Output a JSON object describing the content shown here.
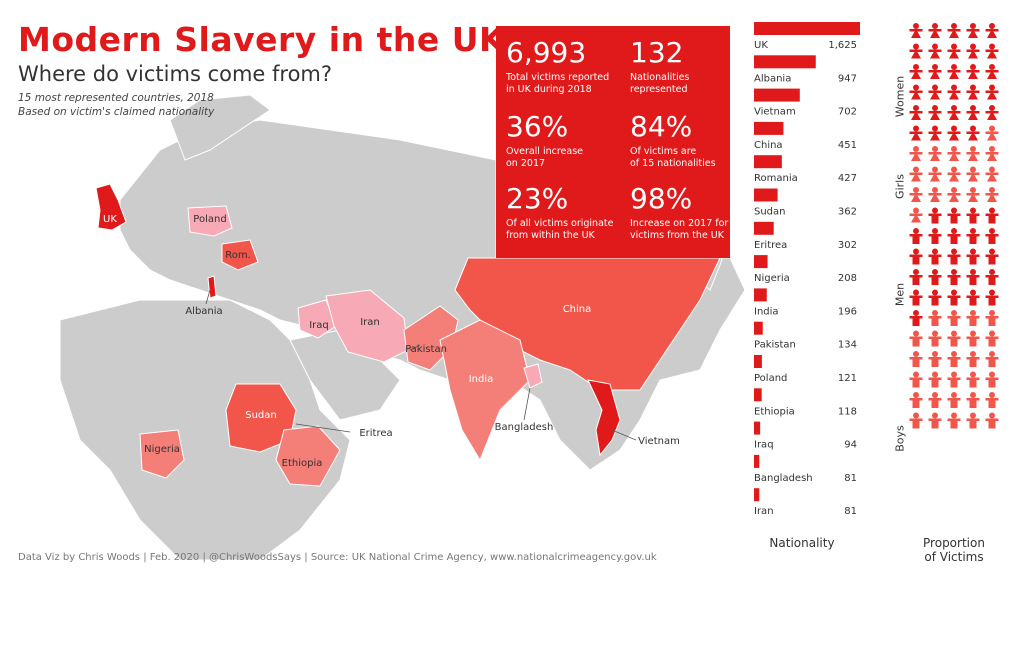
{
  "header": {
    "title": "Modern Slavery in the UK",
    "subtitle": "Where do victims come from?",
    "note1": "15 most represented countries, 2018",
    "note2": "Based on victim's claimed nationality"
  },
  "stats": [
    {
      "value": "6,993",
      "label": "Total victims reported\nin UK during 2018"
    },
    {
      "value": "132",
      "label": "Nationalities\nrepresented"
    },
    {
      "value": "36%",
      "label": "Overall increase\non 2017"
    },
    {
      "value": "84%",
      "label": "Of victims are\nof 15 nationalities"
    },
    {
      "value": "23%",
      "label": "Of all victims originate\nfrom within the UK"
    },
    {
      "value": "98%",
      "label": "Increase on 2017 for\nvictims from the UK"
    }
  ],
  "map_labels": {
    "uk": "UK",
    "poland": "Poland",
    "romania": "Rom.",
    "albania": "Albania",
    "iraq": "Iraq",
    "iran": "Iran",
    "pakistan": "Pakistan",
    "china": "China",
    "india": "India",
    "bangladesh": "Bangladesh",
    "vietnam": "Vietnam",
    "sudan": "Sudan",
    "eritrea": "Eritrea",
    "ethiopia": "Ethiopia",
    "nigeria": "Nigeria"
  },
  "footer": "Data Viz by Chris Woods  |  Feb. 2020  |  @ChrisWoodsSays  |  Source: UK National Crime Agency, www.nationalcrimeagency.gov.uk",
  "colors": {
    "accent": "#e01a1a",
    "land": "#cccccc",
    "high": "#f2564b",
    "mid": "#f47e78",
    "low": "#f7a9b5"
  },
  "chart_data": [
    {
      "type": "bar",
      "orientation": "horizontal",
      "xlabel": "Nationality",
      "categories": [
        "UK",
        "Albania",
        "Vietnam",
        "China",
        "Romania",
        "Sudan",
        "Eritrea",
        "Nigeria",
        "India",
        "Pakistan",
        "Poland",
        "Ethiopia",
        "Iraq",
        "Bangladesh",
        "Iran"
      ],
      "value_labels": [
        "1,625",
        "947",
        "702",
        "451",
        "427",
        "362",
        "302",
        "208",
        "196",
        "134",
        "121",
        "118",
        "94",
        "81",
        "81"
      ],
      "values": [
        1625,
        947,
        702,
        451,
        427,
        362,
        302,
        208,
        196,
        134,
        121,
        118,
        94,
        81,
        81
      ]
    },
    {
      "type": "pictogram",
      "title": "Proportion of Victims",
      "categories": [
        "Women",
        "Girls",
        "Men",
        "Boys"
      ],
      "icons": [
        29,
        17,
        25,
        29
      ]
    }
  ],
  "icons_title": "Proportion\nof Victims"
}
